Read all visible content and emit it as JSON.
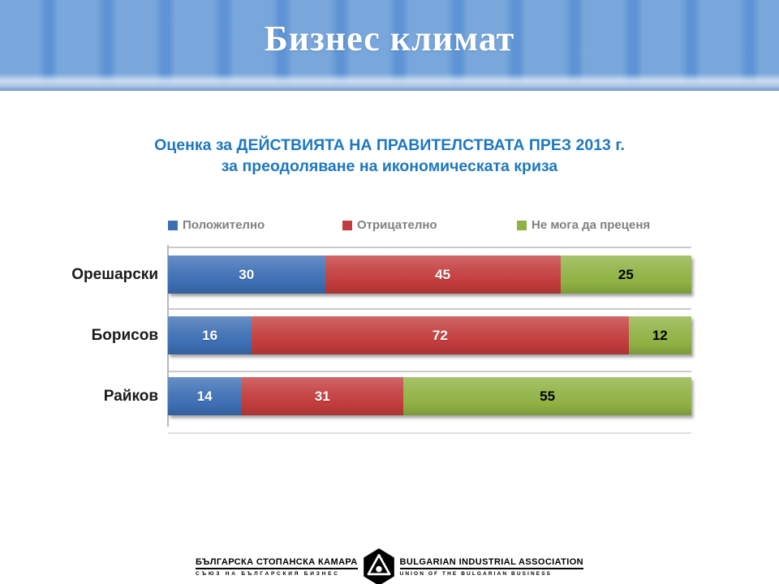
{
  "slide": {
    "title": "Бизнес климат"
  },
  "theme": {
    "header_blue": "#79A6DB",
    "header_stripe_blue": "#5E94D6",
    "chart_title_color": "#1E78BF",
    "legend_text_color": "#808080"
  },
  "chart_data": {
    "type": "bar",
    "orientation": "horizontal",
    "stacked": true,
    "title": "Оценка за ДЕЙСТВИЯТА НА ПРАВИТЕЛСТВАТА ПРЕЗ 2013 г. за преодоляване на икономическата криза",
    "title_lines": [
      "Оценка за ДЕЙСТВИЯТА НА ПРАВИТЕЛСТВАТА ПРЕЗ 2013 г.",
      "за преодоляване на икономическата криза"
    ],
    "categories": [
      "Орешарски",
      "Борисов",
      "Райков"
    ],
    "series": [
      {
        "name": "Положително",
        "color": "#3E6FB4",
        "label_color": "#FFFFFF",
        "values": [
          30,
          16,
          14
        ]
      },
      {
        "name": "Отрицателно",
        "color": "#C33C3C",
        "label_color": "#FFFFFF",
        "values": [
          45,
          72,
          31
        ]
      },
      {
        "name": "Не мога да преценя",
        "color": "#8FB243",
        "label_color": "#000000",
        "values": [
          25,
          12,
          55
        ]
      }
    ],
    "xlim": [
      0,
      100
    ],
    "grid": false,
    "legend_position": "top",
    "data_labels": true
  },
  "footer": {
    "left_title": "БЪЛГАРСКА СТОПАНСКА КАМАРА",
    "left_subtitle": "СЪЮЗ НА БЪЛГАРСКИЯ БИЗНЕС",
    "right_title": "BULGARIAN INDUSTRIAL ASSOCIATION",
    "right_subtitle": "UNION OF THE BULGARIAN BUSINESS",
    "logo": "bia-hexagon-logo"
  }
}
